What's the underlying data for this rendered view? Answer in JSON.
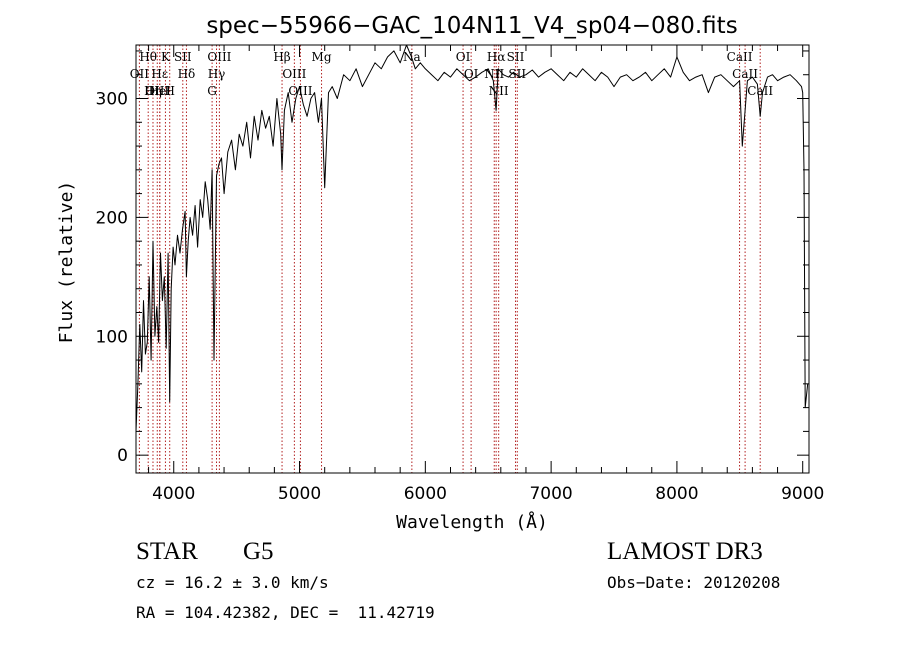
{
  "chart_data": {
    "type": "line",
    "title": "spec−55966−GAC_104N11_V4_sp04−080.fits",
    "xlabel": "Wavelength (Å)",
    "ylabel": "Flux (relative)",
    "xlim": [
      3700,
      9050
    ],
    "ylim": [
      -15,
      345
    ],
    "xticks": [
      4000,
      5000,
      6000,
      7000,
      8000,
      9000
    ],
    "xtick_labels": [
      "4000",
      "5000",
      "6000",
      "7000",
      "8000",
      "9000"
    ],
    "yticks": [
      0,
      100,
      200,
      300
    ],
    "ytick_labels": [
      "0",
      "100",
      "200",
      "300"
    ],
    "line_color": "#000000",
    "marker_color": "#b22222",
    "series": [
      {
        "name": "flux",
        "x": [
          3700,
          3715,
          3730,
          3745,
          3760,
          3775,
          3790,
          3805,
          3820,
          3835,
          3850,
          3865,
          3880,
          3895,
          3910,
          3925,
          3940,
          3955,
          3968,
          3980,
          3995,
          4010,
          4030,
          4050,
          4070,
          4090,
          4101,
          4115,
          4130,
          4150,
          4170,
          4190,
          4210,
          4230,
          4250,
          4270,
          4290,
          4305,
          4320,
          4340,
          4360,
          4380,
          4400,
          4430,
          4460,
          4490,
          4520,
          4550,
          4580,
          4610,
          4640,
          4670,
          4700,
          4730,
          4760,
          4790,
          4820,
          4850,
          4861,
          4880,
          4910,
          4940,
          4970,
          5000,
          5030,
          5060,
          5090,
          5120,
          5150,
          5175,
          5200,
          5230,
          5260,
          5300,
          5350,
          5400,
          5450,
          5500,
          5550,
          5600,
          5650,
          5700,
          5750,
          5800,
          5850,
          5890,
          5920,
          5960,
          6000,
          6050,
          6100,
          6150,
          6200,
          6250,
          6300,
          6350,
          6400,
          6450,
          6500,
          6540,
          6563,
          6580,
          6620,
          6660,
          6700,
          6750,
          6800,
          6850,
          6900,
          6950,
          7000,
          7050,
          7100,
          7150,
          7200,
          7250,
          7300,
          7350,
          7400,
          7450,
          7500,
          7550,
          7600,
          7650,
          7700,
          7750,
          7800,
          7850,
          7900,
          7950,
          8000,
          8050,
          8100,
          8150,
          8200,
          8250,
          8300,
          8350,
          8400,
          8450,
          8498,
          8520,
          8542,
          8560,
          8600,
          8640,
          8662,
          8680,
          8720,
          8760,
          8800,
          8850,
          8900,
          8950,
          8990,
          9000,
          9010,
          9020,
          9040
        ],
        "y": [
          20,
          60,
          110,
          70,
          130,
          85,
          95,
          150,
          80,
          180,
          100,
          125,
          95,
          170,
          130,
          150,
          90,
          170,
          45,
          140,
          175,
          160,
          185,
          170,
          190,
          205,
          150,
          180,
          200,
          185,
          210,
          175,
          215,
          200,
          230,
          215,
          190,
          240,
          80,
          235,
          245,
          250,
          220,
          255,
          265,
          240,
          270,
          260,
          280,
          250,
          285,
          265,
          290,
          275,
          285,
          260,
          300,
          270,
          240,
          290,
          305,
          280,
          300,
          310,
          295,
          285,
          300,
          305,
          280,
          300,
          225,
          305,
          310,
          300,
          320,
          315,
          325,
          310,
          320,
          330,
          325,
          335,
          340,
          330,
          345,
          335,
          325,
          330,
          325,
          320,
          315,
          322,
          318,
          325,
          320,
          315,
          318,
          322,
          325,
          315,
          290,
          325,
          320,
          318,
          322,
          318,
          320,
          324,
          318,
          322,
          325,
          320,
          315,
          322,
          318,
          325,
          320,
          315,
          322,
          318,
          310,
          318,
          320,
          315,
          318,
          322,
          315,
          320,
          325,
          318,
          335,
          322,
          315,
          318,
          320,
          305,
          318,
          320,
          315,
          310,
          315,
          260,
          290,
          315,
          318,
          312,
          285,
          305,
          318,
          320,
          315,
          318,
          320,
          315,
          310,
          305,
          240,
          40,
          60
        ]
      }
    ],
    "lines": [
      {
        "label": "Hθ",
        "wavelength": 3797
      },
      {
        "label": "OII",
        "wavelength": 3727
      },
      {
        "label": "OIII",
        "wavelength": 3869
      },
      {
        "label": "Hε",
        "wavelength": 3889
      },
      {
        "label": "HeI",
        "wavelength": 3889
      },
      {
        "label": "Hη",
        "wavelength": 3835
      },
      {
        "label": "K",
        "wavelength": 3934
      },
      {
        "label": "H",
        "wavelength": 3968
      },
      {
        "label": "SII",
        "wavelength": 4072
      },
      {
        "label": "Hδ",
        "wavelength": 4101
      },
      {
        "label": "OIII",
        "wavelength": 4363
      },
      {
        "label": "Hγ",
        "wavelength": 4340
      },
      {
        "label": "G",
        "wavelength": 4305
      },
      {
        "label": "Hβ",
        "wavelength": 4861
      },
      {
        "label": "OIII",
        "wavelength": 4959
      },
      {
        "label": "OIII",
        "wavelength": 5007
      },
      {
        "label": "Mg",
        "wavelength": 5175
      },
      {
        "label": "Na",
        "wavelength": 5893
      },
      {
        "label": "OI",
        "wavelength": 6300
      },
      {
        "label": "OI",
        "wavelength": 6364
      },
      {
        "label": "Hα",
        "wavelength": 6563
      },
      {
        "label": "NII",
        "wavelength": 6548
      },
      {
        "label": "NII",
        "wavelength": 6583
      },
      {
        "label": "SII",
        "wavelength": 6717
      },
      {
        "label": "SII",
        "wavelength": 6731
      },
      {
        "label": "CaII",
        "wavelength": 8498
      },
      {
        "label": "CaII",
        "wavelength": 8542
      },
      {
        "label": "CaII",
        "wavelength": 8662
      }
    ]
  },
  "info": {
    "class_label": "STAR",
    "subclass_label": "G5",
    "cz_text": "cz = 16.2 ± 3.0 km/s",
    "coords_text": "RA = 104.42382, DEC =  11.42719",
    "survey_label": "LAMOST DR3",
    "obs_date_text": "Obs−Date: 20120208"
  }
}
